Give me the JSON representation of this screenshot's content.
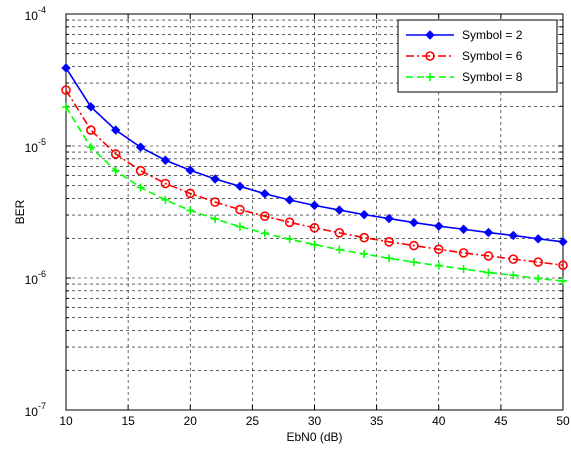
{
  "chart_data": {
    "type": "line",
    "title": "",
    "xlabel": "EbN0 (dB)",
    "ylabel": "BER",
    "xlim": [
      10,
      50
    ],
    "ylim": [
      1e-07,
      0.0001
    ],
    "yscale": "log",
    "grid": true,
    "legend_position": "top-right",
    "x_ticks": [
      10,
      15,
      20,
      25,
      30,
      35,
      40,
      45,
      50
    ],
    "y_ticks": [
      {
        "value": 1e-07,
        "base": "10",
        "exp": "-7"
      },
      {
        "value": 1e-06,
        "base": "10",
        "exp": "-6"
      },
      {
        "value": 1e-05,
        "base": "10",
        "exp": "-5"
      },
      {
        "value": 0.0001,
        "base": "10",
        "exp": "-4"
      }
    ],
    "x": [
      10,
      12,
      14,
      16,
      18,
      20,
      22,
      24,
      26,
      28,
      30,
      32,
      34,
      36,
      38,
      40,
      42,
      44,
      46,
      48,
      50
    ],
    "series": [
      {
        "name": "Symbol = 2",
        "color": "#0000ff",
        "line_style": "solid",
        "marker": "diamond",
        "values": [
          3.9e-05,
          1.98e-05,
          1.32e-05,
          9.8e-06,
          7.8e-06,
          6.55e-06,
          5.62e-06,
          4.95e-06,
          4.35e-06,
          3.9e-06,
          3.55e-06,
          3.27e-06,
          3.02e-06,
          2.82e-06,
          2.63e-06,
          2.47e-06,
          2.34e-06,
          2.21e-06,
          2.1e-06,
          1.98e-06,
          1.88e-06
        ]
      },
      {
        "name": "Symbol = 6",
        "color": "#ff0000",
        "line_style": "dashdot",
        "marker": "circle",
        "values": [
          2.65e-05,
          1.32e-05,
          8.7e-06,
          6.5e-06,
          5.2e-06,
          4.37e-06,
          3.76e-06,
          3.3e-06,
          2.94e-06,
          2.64e-06,
          2.4e-06,
          2.2e-06,
          2.02e-06,
          1.88e-06,
          1.76e-06,
          1.65e-06,
          1.55e-06,
          1.47e-06,
          1.39e-06,
          1.32e-06,
          1.25e-06
        ]
      },
      {
        "name": "Symbol = 8",
        "color": "#00ff00",
        "line_style": "dashed",
        "marker": "plus",
        "values": [
          1.97e-05,
          9.8e-06,
          6.5e-06,
          4.85e-06,
          3.9e-06,
          3.25e-06,
          2.8e-06,
          2.45e-06,
          2.18e-06,
          1.97e-06,
          1.79e-06,
          1.64e-06,
          1.52e-06,
          1.41e-06,
          1.32e-06,
          1.24e-06,
          1.17e-06,
          1.1e-06,
          1.05e-06,
          9.9e-07,
          9.5e-07
        ]
      }
    ]
  }
}
